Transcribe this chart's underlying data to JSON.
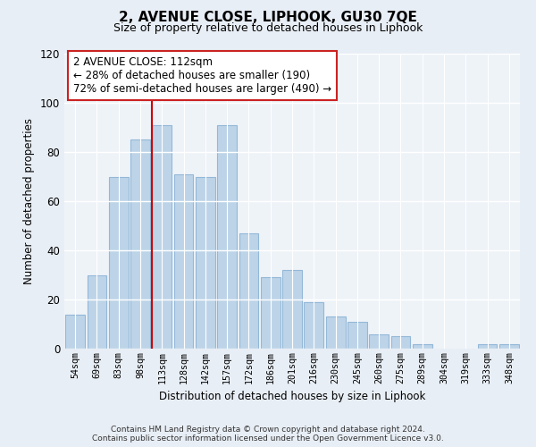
{
  "title": "2, AVENUE CLOSE, LIPHOOK, GU30 7QE",
  "subtitle": "Size of property relative to detached houses in Liphook",
  "xlabel": "Distribution of detached houses by size in Liphook",
  "ylabel": "Number of detached properties",
  "categories": [
    "54sqm",
    "69sqm",
    "83sqm",
    "98sqm",
    "113sqm",
    "128sqm",
    "142sqm",
    "157sqm",
    "172sqm",
    "186sqm",
    "201sqm",
    "216sqm",
    "230sqm",
    "245sqm",
    "260sqm",
    "275sqm",
    "289sqm",
    "304sqm",
    "319sqm",
    "333sqm",
    "348sqm"
  ],
  "values": [
    14,
    30,
    70,
    85,
    91,
    71,
    70,
    91,
    47,
    29,
    32,
    19,
    13,
    11,
    6,
    5,
    2,
    0,
    0,
    2,
    2
  ],
  "bar_color": "#bdd4e8",
  "bar_edge_color": "#93b8d8",
  "vline_x_index": 4,
  "vline_color": "#cc0000",
  "annotation_line1": "2 AVENUE CLOSE: 112sqm",
  "annotation_line2": "← 28% of detached houses are smaller (190)",
  "annotation_line3": "72% of semi-detached houses are larger (490) →",
  "annotation_box_color": "#ffffff",
  "annotation_box_edge": "#cc2222",
  "ylim": [
    0,
    120
  ],
  "yticks": [
    0,
    20,
    40,
    60,
    80,
    100,
    120
  ],
  "footer_line1": "Contains HM Land Registry data © Crown copyright and database right 2024.",
  "footer_line2": "Contains public sector information licensed under the Open Government Licence v3.0.",
  "bg_color": "#e8eef5",
  "plot_bg_color": "#eef3f8",
  "title_fontsize": 11,
  "subtitle_fontsize": 9
}
